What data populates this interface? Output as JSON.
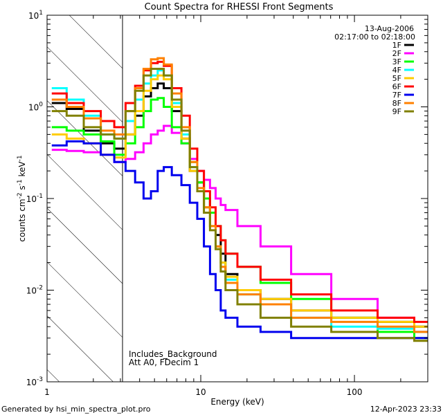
{
  "chart_data": {
    "type": "line",
    "title": "Count Spectra for RHESSI Front Segments",
    "xlabel": "Energy (keV)",
    "ylabel_parts": {
      "base": "counts cm",
      "exp1": "-2",
      "mid1": " s",
      "exp2": "-1",
      "mid2": " keV",
      "exp3": "-1"
    },
    "xscale": "log",
    "yscale": "log",
    "xlim": [
      1.0,
      300.0
    ],
    "ylim": [
      0.001,
      10.0
    ],
    "x_ticks": [
      {
        "value": 1,
        "label": "1"
      },
      {
        "value": 10,
        "label": "10"
      },
      {
        "value": 100,
        "label": "100"
      }
    ],
    "y_ticks": [
      {
        "value": 0.001,
        "base": "10",
        "exp": "-3"
      },
      {
        "value": 0.01,
        "base": "10",
        "exp": "-2"
      },
      {
        "value": 0.1,
        "base": "10",
        "exp": "-1"
      },
      {
        "value": 1,
        "base": "10",
        "exp": "0"
      },
      {
        "value": 10,
        "base": "10",
        "exp": "1"
      }
    ],
    "excluded_region": {
      "x_from": 1.0,
      "x_to": 3.0,
      "style": "hatched"
    },
    "legend_position": "top-right",
    "time_label": "13-Aug-2006",
    "time_range": "02:17:00 to 02:18:00",
    "annotations": [
      "Includes_Background",
      "Att A0, FDecim 1"
    ],
    "series": [
      {
        "name": "1F",
        "color": "#000000",
        "x": [
          1.2,
          1.5,
          2.0,
          2.5,
          3.0,
          3.5,
          4.0,
          4.5,
          5.0,
          5.5,
          6.0,
          7.0,
          8.0,
          9.0,
          10.0,
          11.0,
          12.0,
          13.0,
          14.0,
          15.0,
          20.0,
          30.0,
          50.0,
          100.0,
          200.0,
          300.0
        ],
        "y": [
          1.1,
          0.95,
          0.55,
          0.4,
          0.35,
          0.5,
          0.8,
          1.3,
          1.6,
          1.8,
          1.6,
          0.9,
          0.45,
          0.2,
          0.15,
          0.1,
          0.07,
          0.04,
          0.025,
          0.015,
          0.01,
          0.008,
          0.006,
          0.005,
          0.0045,
          0.004
        ]
      },
      {
        "name": "2F",
        "color": "#ff00ff",
        "x": [
          1.2,
          1.5,
          2.0,
          2.5,
          3.0,
          3.5,
          4.0,
          4.5,
          5.0,
          5.5,
          6.0,
          7.0,
          8.0,
          9.0,
          10.0,
          11.0,
          12.0,
          13.0,
          14.0,
          15.0,
          20.0,
          30.0,
          50.0,
          100.0,
          200.0,
          300.0
        ],
        "y": [
          0.34,
          0.33,
          0.32,
          0.3,
          0.25,
          0.27,
          0.32,
          0.4,
          0.5,
          0.55,
          0.62,
          0.52,
          0.4,
          0.27,
          0.2,
          0.16,
          0.13,
          0.1,
          0.085,
          0.075,
          0.05,
          0.03,
          0.015,
          0.008,
          0.005,
          0.0035
        ]
      },
      {
        "name": "3F",
        "color": "#00ff00",
        "x": [
          1.2,
          1.5,
          2.0,
          2.5,
          3.0,
          3.5,
          4.0,
          4.5,
          5.0,
          5.5,
          6.0,
          7.0,
          8.0,
          9.0,
          10.0,
          11.0,
          12.0,
          13.0,
          14.0,
          15.0,
          20.0,
          30.0,
          50.0,
          100.0,
          200.0,
          300.0
        ],
        "y": [
          0.6,
          0.55,
          0.5,
          0.42,
          0.3,
          0.4,
          0.6,
          0.9,
          1.2,
          1.25,
          1.0,
          0.6,
          0.4,
          0.25,
          0.15,
          0.1,
          0.07,
          0.05,
          0.035,
          0.025,
          0.018,
          0.012,
          0.008,
          0.005,
          0.0035,
          0.003
        ]
      },
      {
        "name": "4F",
        "color": "#00ffff",
        "x": [
          1.2,
          1.5,
          2.0,
          2.5,
          3.0,
          3.5,
          4.0,
          4.5,
          5.0,
          5.5,
          6.0,
          7.0,
          8.0,
          9.0,
          10.0,
          11.0,
          12.0,
          13.0,
          14.0,
          15.0,
          20.0,
          30.0,
          50.0,
          100.0,
          200.0,
          300.0
        ],
        "y": [
          1.6,
          1.2,
          0.8,
          0.5,
          0.45,
          0.7,
          1.2,
          1.8,
          2.2,
          2.5,
          2.2,
          1.1,
          0.5,
          0.22,
          0.12,
          0.08,
          0.05,
          0.03,
          0.02,
          0.013,
          0.009,
          0.007,
          0.005,
          0.004,
          0.0038,
          0.0035
        ]
      },
      {
        "name": "5F",
        "color": "#ffcc00",
        "x": [
          1.2,
          1.5,
          2.0,
          2.5,
          3.0,
          3.5,
          4.0,
          4.5,
          5.0,
          5.5,
          6.0,
          7.0,
          8.0,
          9.0,
          10.0,
          11.0,
          12.0,
          13.0,
          14.0,
          15.0,
          20.0,
          30.0,
          50.0,
          100.0,
          200.0,
          300.0
        ],
        "y": [
          0.5,
          0.45,
          0.4,
          0.3,
          0.28,
          0.5,
          0.9,
          1.5,
          2.0,
          2.2,
          2.0,
          1.0,
          0.45,
          0.2,
          0.12,
          0.08,
          0.05,
          0.03,
          0.02,
          0.014,
          0.01,
          0.008,
          0.006,
          0.005,
          0.0045,
          0.004
        ]
      },
      {
        "name": "6F",
        "color": "#ff0000",
        "x": [
          1.2,
          1.5,
          2.0,
          2.5,
          3.0,
          3.5,
          4.0,
          4.5,
          5.0,
          5.5,
          6.0,
          7.0,
          8.0,
          9.0,
          10.0,
          11.0,
          12.0,
          13.0,
          14.0,
          15.0,
          20.0,
          30.0,
          50.0,
          100.0,
          200.0,
          300.0
        ],
        "y": [
          1.4,
          1.1,
          0.9,
          0.7,
          0.6,
          1.1,
          1.7,
          2.5,
          3.0,
          3.1,
          2.8,
          1.6,
          0.8,
          0.35,
          0.2,
          0.12,
          0.08,
          0.05,
          0.035,
          0.025,
          0.018,
          0.013,
          0.009,
          0.006,
          0.005,
          0.0045
        ]
      },
      {
        "name": "7F",
        "color": "#0000ee",
        "x": [
          1.2,
          1.5,
          2.0,
          2.5,
          3.0,
          3.5,
          4.0,
          4.5,
          5.0,
          5.5,
          6.0,
          7.0,
          8.0,
          9.0,
          10.0,
          11.0,
          12.0,
          13.0,
          14.0,
          15.0,
          20.0,
          30.0,
          50.0,
          100.0,
          200.0,
          300.0
        ],
        "y": [
          0.38,
          0.42,
          0.4,
          0.3,
          0.25,
          0.2,
          0.15,
          0.1,
          0.12,
          0.2,
          0.22,
          0.18,
          0.14,
          0.09,
          0.06,
          0.03,
          0.015,
          0.01,
          0.006,
          0.005,
          0.004,
          0.0035,
          0.003,
          0.003,
          0.003,
          0.003
        ]
      },
      {
        "name": "8F",
        "color": "#ff8000",
        "x": [
          1.2,
          1.5,
          2.0,
          2.5,
          3.0,
          3.5,
          4.0,
          4.5,
          5.0,
          5.5,
          6.0,
          7.0,
          8.0,
          9.0,
          10.0,
          11.0,
          12.0,
          13.0,
          14.0,
          15.0,
          20.0,
          30.0,
          50.0,
          100.0,
          200.0,
          300.0
        ],
        "y": [
          1.2,
          1.0,
          0.75,
          0.55,
          0.5,
          0.9,
          1.6,
          2.6,
          3.3,
          3.4,
          2.9,
          1.4,
          0.6,
          0.25,
          0.13,
          0.08,
          0.05,
          0.03,
          0.018,
          0.012,
          0.009,
          0.007,
          0.005,
          0.0045,
          0.004,
          0.0035
        ]
      },
      {
        "name": "9F",
        "color": "#808000",
        "x": [
          1.2,
          1.5,
          2.0,
          2.5,
          3.0,
          3.5,
          4.0,
          4.5,
          5.0,
          5.5,
          6.0,
          7.0,
          8.0,
          9.0,
          10.0,
          11.0,
          12.0,
          13.0,
          14.0,
          15.0,
          20.0,
          30.0,
          50.0,
          100.0,
          200.0,
          300.0
        ],
        "y": [
          0.9,
          0.8,
          0.6,
          0.5,
          0.45,
          0.9,
          1.5,
          2.2,
          2.6,
          2.6,
          2.2,
          1.2,
          0.55,
          0.22,
          0.12,
          0.07,
          0.045,
          0.028,
          0.016,
          0.01,
          0.007,
          0.005,
          0.004,
          0.0035,
          0.003,
          0.0028
        ]
      }
    ]
  },
  "footer": {
    "generated_by": "Generated by hsi_min_spectra_plot.pro",
    "date": "12-Apr-2023 23:33"
  }
}
